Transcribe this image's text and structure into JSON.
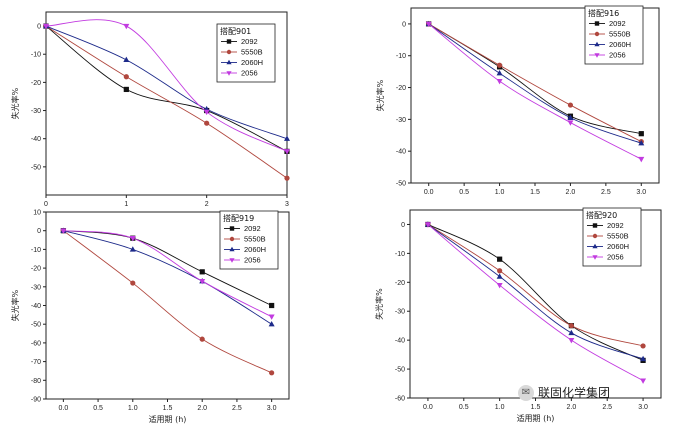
{
  "markers": {
    "2092": "square",
    "5550B": "circle",
    "2060H": "triangle-up",
    "2056": "triangle-down"
  },
  "colors": {
    "2092": "#111111",
    "5550B": "#b0473e",
    "2060H": "#1d2a8a",
    "2056": "#c23be0"
  },
  "watermark": {
    "text": "联固化学集团",
    "icon": "wechat-icon"
  },
  "chart_data": [
    {
      "type": "line",
      "legend_title": "搭配901",
      "legend_position": "top-right",
      "ylabel": "失光率%",
      "xlabel": "",
      "x": [
        0,
        1,
        2,
        3
      ],
      "xlim": [
        0,
        3
      ],
      "ylim": [
        -60,
        5
      ],
      "xticks": [
        "0",
        "1",
        "2",
        "3"
      ],
      "yticks": [
        "0",
        "-10",
        "-20",
        "-30",
        "-40",
        "-50"
      ],
      "series": [
        {
          "name": "2092",
          "values": [
            0,
            -22.5,
            -30,
            -44.5
          ]
        },
        {
          "name": "5550B",
          "values": [
            0,
            -18,
            -34.5,
            -54
          ]
        },
        {
          "name": "2060H",
          "values": [
            0,
            -12,
            -29.5,
            -40
          ]
        },
        {
          "name": "2056",
          "values": [
            0,
            0,
            -30.5,
            -44.5
          ]
        }
      ]
    },
    {
      "type": "line",
      "legend_title": "搭配916",
      "legend_position": "top-right",
      "ylabel": "失光率%",
      "xlabel": "",
      "x": [
        0,
        1,
        2,
        3
      ],
      "xlim": [
        -0.25,
        3.25
      ],
      "ylim": [
        -50,
        5
      ],
      "xticks": [
        "0.0",
        "0.5",
        "1.0",
        "1.5",
        "2.0",
        "2.5",
        "3.0"
      ],
      "yticks": [
        "0",
        "-10",
        "-20",
        "-30",
        "-40",
        "-50"
      ],
      "series": [
        {
          "name": "2092",
          "values": [
            0,
            -13.5,
            -29,
            -34.5
          ]
        },
        {
          "name": "5550B",
          "values": [
            0,
            -13,
            -25.5,
            -37
          ]
        },
        {
          "name": "2060H",
          "values": [
            0,
            -15.5,
            -29.5,
            -37.5
          ]
        },
        {
          "name": "2056",
          "values": [
            0,
            -18,
            -31,
            -42.5
          ]
        }
      ]
    },
    {
      "type": "line",
      "legend_title": "搭配919",
      "legend_position": "top-right",
      "ylabel": "失光率%",
      "xlabel": "适用期 (h)",
      "x": [
        0,
        1,
        2,
        3
      ],
      "xlim": [
        -0.25,
        3.25
      ],
      "ylim": [
        -90,
        10
      ],
      "xticks": [
        "0.0",
        "0.5",
        "1.0",
        "1.5",
        "2.0",
        "2.5",
        "3.0"
      ],
      "yticks": [
        "10",
        "0",
        "-10",
        "-20",
        "-30",
        "-40",
        "-50",
        "-60",
        "-70",
        "-80",
        "-90"
      ],
      "series": [
        {
          "name": "2092",
          "values": [
            0,
            -4,
            -22,
            -40
          ]
        },
        {
          "name": "5550B",
          "values": [
            0,
            -28,
            -58,
            -76
          ]
        },
        {
          "name": "2060H",
          "values": [
            0,
            -10,
            -27,
            -50
          ]
        },
        {
          "name": "2056",
          "values": [
            0,
            -4,
            -27,
            -46
          ]
        }
      ]
    },
    {
      "type": "line",
      "legend_title": "搭配920",
      "legend_position": "top-right",
      "ylabel": "失光率%",
      "xlabel": "适用期 (h)",
      "x": [
        0,
        1,
        2,
        3
      ],
      "xlim": [
        -0.25,
        3.25
      ],
      "ylim": [
        -60,
        5
      ],
      "xticks": [
        "0.0",
        "0.5",
        "1.0",
        "1.5",
        "2.0",
        "2.5",
        "3.0"
      ],
      "yticks": [
        "0",
        "-10",
        "-20",
        "-30",
        "-40",
        "-50",
        "-60"
      ],
      "series": [
        {
          "name": "2092",
          "values": [
            0,
            -12,
            -35,
            -47
          ]
        },
        {
          "name": "5550B",
          "values": [
            0,
            -16,
            -35,
            -42
          ]
        },
        {
          "name": "2060H",
          "values": [
            0,
            -18,
            -37.5,
            -46.5
          ]
        },
        {
          "name": "2056",
          "values": [
            0,
            -21,
            -40,
            -54
          ]
        }
      ]
    }
  ]
}
